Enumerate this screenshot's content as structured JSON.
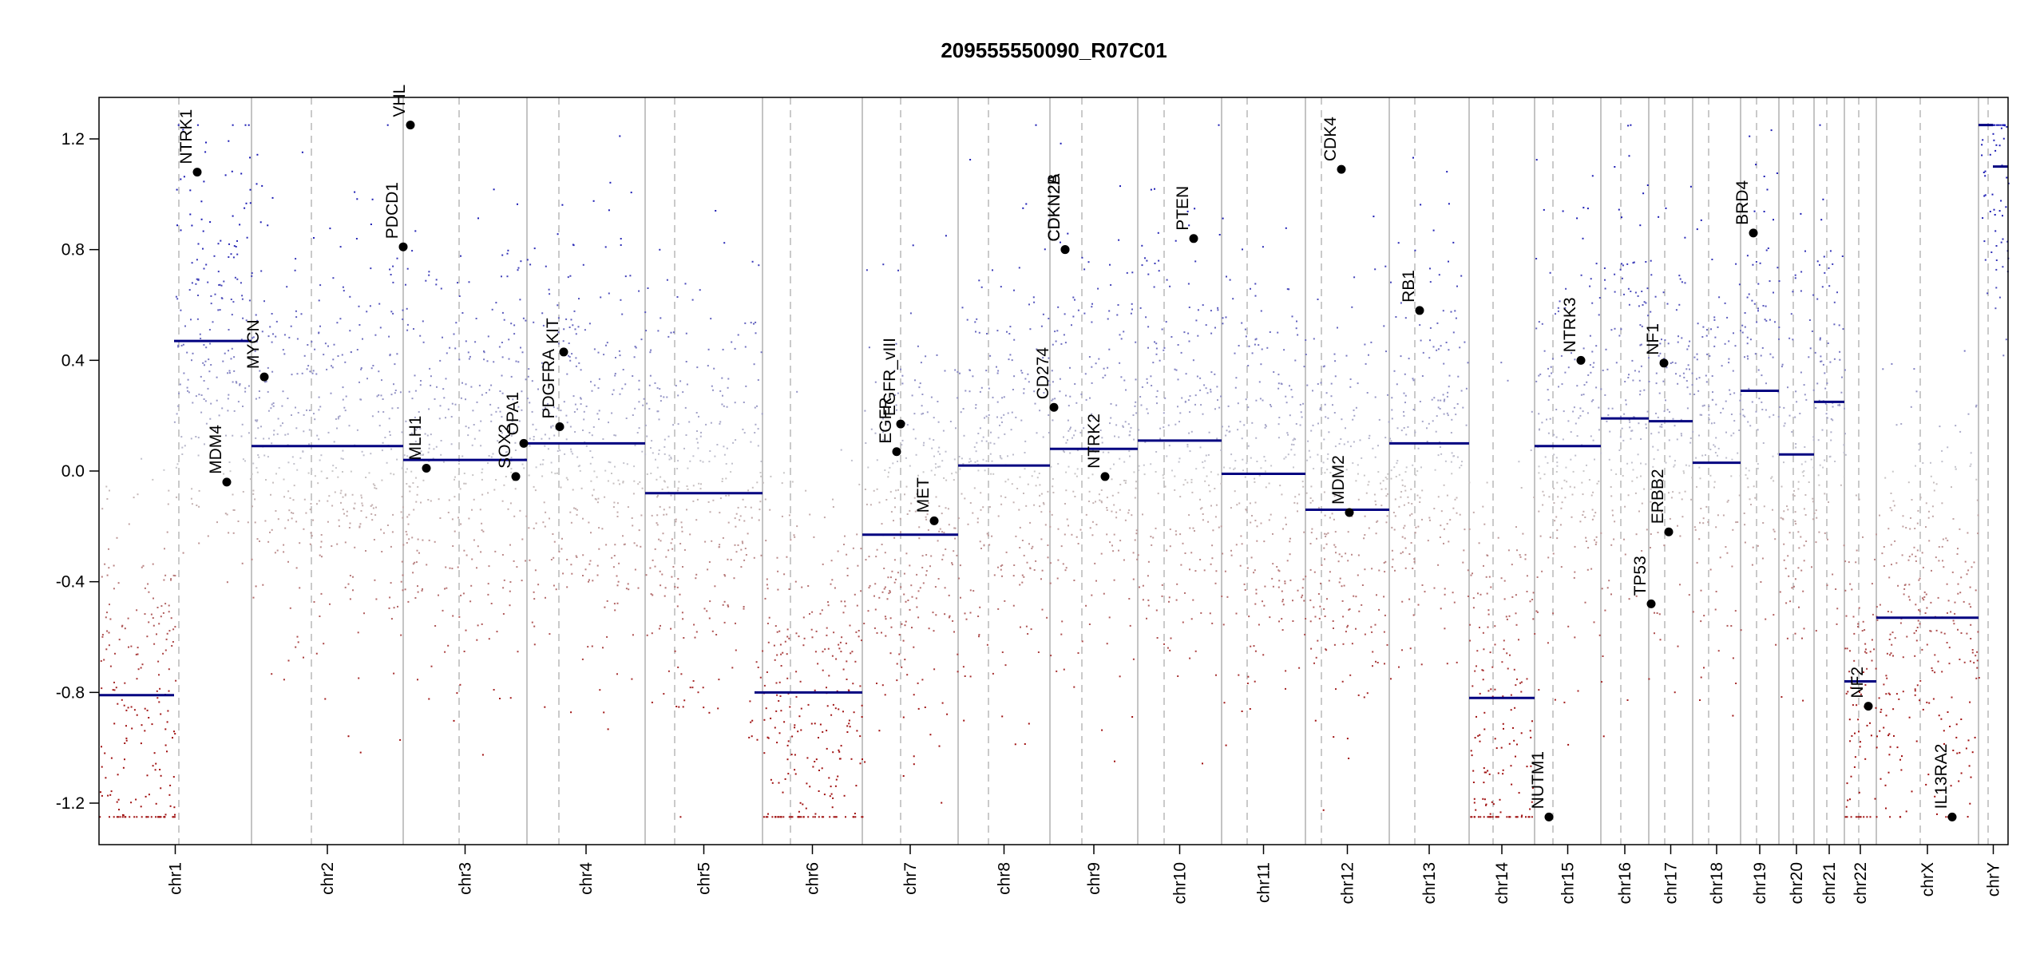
{
  "chart_data": {
    "type": "scatter",
    "title": "209555550090_R07C01",
    "xlabel": "",
    "ylabel": "",
    "ylim": [
      -1.35,
      1.35
    ],
    "yticks": [
      -1.2,
      -0.8,
      -0.4,
      0.0,
      0.4,
      0.8,
      1.2
    ],
    "ytick_labels": [
      "-1.2",
      "-0.8",
      "-0.4",
      "0.0",
      "0.4",
      "0.8",
      "1.2"
    ],
    "grid": false,
    "colors": {
      "gain": "#1c1cb0",
      "loss": "#a01010",
      "neutral": "#bbbbbb",
      "segment": "#000080",
      "gene_point": "#000000",
      "boundary": "#b0b0b0"
    },
    "chromosomes": [
      {
        "name": "chr1",
        "segments": [
          {
            "value": -0.81,
            "part": "p"
          },
          {
            "value": 0.47,
            "part": "q"
          }
        ]
      },
      {
        "name": "chr2",
        "segments": [
          {
            "value": 0.09
          }
        ]
      },
      {
        "name": "chr3",
        "segments": [
          {
            "value": 0.04
          }
        ]
      },
      {
        "name": "chr4",
        "segments": [
          {
            "value": 0.1
          }
        ]
      },
      {
        "name": "chr5",
        "segments": [
          {
            "value": -0.08
          }
        ]
      },
      {
        "name": "chr6",
        "segments": [
          {
            "value": -0.8
          }
        ]
      },
      {
        "name": "chr7",
        "segments": [
          {
            "value": -0.23
          }
        ]
      },
      {
        "name": "chr8",
        "segments": [
          {
            "value": 0.02
          }
        ]
      },
      {
        "name": "chr9",
        "segments": [
          {
            "value": 0.08
          }
        ]
      },
      {
        "name": "chr10",
        "segments": [
          {
            "value": 0.11
          }
        ]
      },
      {
        "name": "chr11",
        "segments": [
          {
            "value": -0.01
          }
        ]
      },
      {
        "name": "chr12",
        "segments": [
          {
            "value": -0.14
          }
        ]
      },
      {
        "name": "chr13",
        "segments": [
          {
            "value": 0.1
          }
        ]
      },
      {
        "name": "chr14",
        "segments": [
          {
            "value": -0.82
          }
        ]
      },
      {
        "name": "chr15",
        "segments": [
          {
            "value": 0.09
          }
        ]
      },
      {
        "name": "chr16",
        "segments": [
          {
            "value": 0.19
          }
        ]
      },
      {
        "name": "chr17",
        "segments": [
          {
            "value": 0.18
          }
        ]
      },
      {
        "name": "chr18",
        "segments": [
          {
            "value": 0.03
          }
        ]
      },
      {
        "name": "chr19",
        "segments": [
          {
            "value": 0.29
          }
        ]
      },
      {
        "name": "chr20",
        "segments": [
          {
            "value": 0.06
          }
        ]
      },
      {
        "name": "chr21",
        "segments": [
          {
            "value": 0.25
          }
        ]
      },
      {
        "name": "chr22",
        "segments": [
          {
            "value": -0.76
          }
        ]
      },
      {
        "name": "chrX",
        "segments": [
          {
            "value": -0.53
          }
        ]
      },
      {
        "name": "chrY",
        "segments": [
          {
            "value": 1.25,
            "part": "p"
          },
          {
            "value": 1.1,
            "part": "q"
          }
        ]
      }
    ],
    "genes": [
      {
        "name": "NTRK1",
        "chrom": "chr1",
        "value": 1.08
      },
      {
        "name": "MDM4",
        "chrom": "chr1",
        "value": -0.04
      },
      {
        "name": "MYCN",
        "chrom": "chr2",
        "value": 0.34
      },
      {
        "name": "PDCD1",
        "chrom": "chr2",
        "value": 0.81
      },
      {
        "name": "VHL",
        "chrom": "chr3",
        "value": 1.25
      },
      {
        "name": "MLH1",
        "chrom": "chr3",
        "value": 0.01
      },
      {
        "name": "SOX2",
        "chrom": "chr3",
        "value": -0.02
      },
      {
        "name": "OPA1",
        "chrom": "chr3",
        "value": 0.1
      },
      {
        "name": "PDGFRA",
        "chrom": "chr4",
        "value": 0.16
      },
      {
        "name": "KIT",
        "chrom": "chr4",
        "value": 0.43
      },
      {
        "name": "EGFR",
        "chrom": "chr7",
        "value": 0.07
      },
      {
        "name": "EGFR_vIII",
        "chrom": "chr7",
        "value": 0.17
      },
      {
        "name": "MET",
        "chrom": "chr7",
        "value": -0.18
      },
      {
        "name": "CD274",
        "chrom": "chr9",
        "value": 0.23
      },
      {
        "name": "CDKN2A",
        "chrom": "chr9",
        "value": 0.8
      },
      {
        "name": "CDKN2B",
        "chrom": "chr9",
        "value": 0.8
      },
      {
        "name": "NTRK2",
        "chrom": "chr9",
        "value": -0.02
      },
      {
        "name": "PTEN",
        "chrom": "chr10",
        "value": 0.84
      },
      {
        "name": "CDK4",
        "chrom": "chr12",
        "value": 1.09
      },
      {
        "name": "MDM2",
        "chrom": "chr12",
        "value": -0.15
      },
      {
        "name": "RB1",
        "chrom": "chr13",
        "value": 0.58
      },
      {
        "name": "NUTM1",
        "chrom": "chr15",
        "value": -1.25
      },
      {
        "name": "NTRK3",
        "chrom": "chr15",
        "value": 0.4
      },
      {
        "name": "TP53",
        "chrom": "chr17",
        "value": -0.48
      },
      {
        "name": "NF1",
        "chrom": "chr17",
        "value": 0.39
      },
      {
        "name": "ERBB2",
        "chrom": "chr17",
        "value": -0.22
      },
      {
        "name": "BRD4",
        "chrom": "chr19",
        "value": 0.86
      },
      {
        "name": "NF2",
        "chrom": "chr22",
        "value": -0.85
      },
      {
        "name": "IL13RA2",
        "chrom": "chrX",
        "value": -1.25
      }
    ]
  }
}
